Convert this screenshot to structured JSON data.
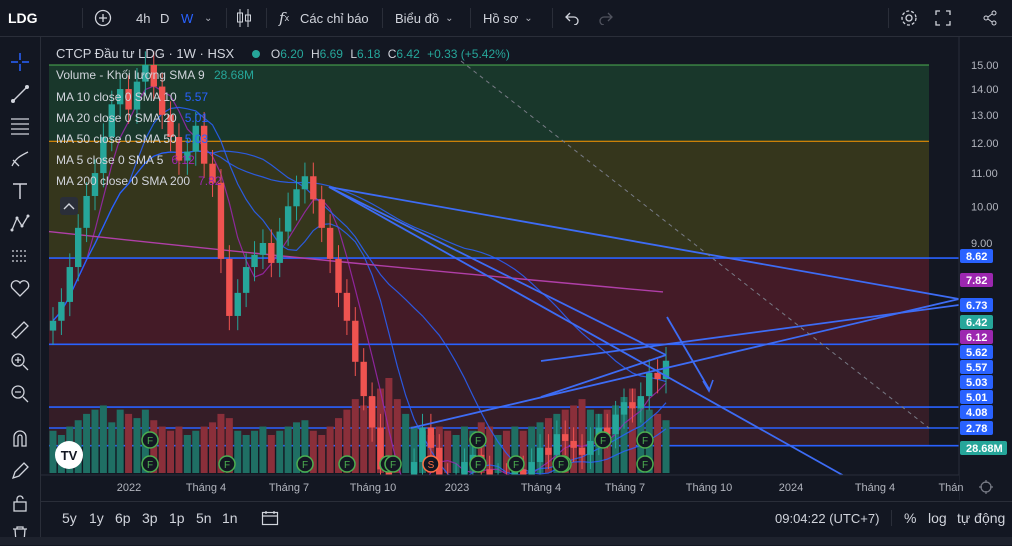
{
  "toolbar": {
    "symbol": "LDG",
    "interval_4h": "4h",
    "interval_d": "D",
    "interval_w": "W",
    "indicators_label": "Các chỉ báo",
    "chart_menu_label": "Biểu đồ",
    "profile_label": "Hồ sơ"
  },
  "legend": {
    "title": "CTCP Đầu tư LDG · 1W · HSX",
    "o_label": "O",
    "o_value": "6.20",
    "h_label": "H",
    "h_value": "6.69",
    "l_label": "L",
    "l_value": "6.18",
    "c_label": "C",
    "c_value": "6.42",
    "change": "+0.33 (+5.42%)",
    "volume_label": "Volume - Khối lượng SMA 9",
    "volume_value": "28.68M",
    "ma_rows": [
      {
        "label": "MA 10 close 0 SMA 10",
        "value": "5.57",
        "color": "#2962ff"
      },
      {
        "label": "MA 20 close 0 SMA 20",
        "value": "5.01",
        "color": "#2962ff"
      },
      {
        "label": "MA 50 close 0 SMA 50",
        "value": "5.03",
        "color": "#2962ff"
      },
      {
        "label": "MA 5 close 0 SMA 5",
        "value": "6.12",
        "color": "#9c27b0"
      },
      {
        "label": "MA 200 close 0 SMA 200",
        "value": "7.82",
        "color": "#9c27b0"
      }
    ]
  },
  "chart_data": {
    "type": "candlestick",
    "title": "CTCP Đầu tư LDG · 1W · HSX",
    "y_ticks": [
      "15.00",
      "14.00",
      "13.00",
      "12.00",
      "11.00",
      "10.00",
      "9.00"
    ],
    "x_ticks": [
      "2022",
      "Tháng 4",
      "Tháng 7",
      "Tháng 10",
      "2023",
      "Tháng 4",
      "Tháng 7",
      "Tháng 10",
      "2024",
      "Tháng 4",
      "Thán"
    ],
    "price_labels": [
      {
        "value": "8.62",
        "color": "#2962ff"
      },
      {
        "value": "7.82",
        "color": "#9c27b0"
      },
      {
        "value": "6.73",
        "color": "#2962ff"
      },
      {
        "value": "6.42",
        "color": "#26a69a"
      },
      {
        "value": "6.12",
        "color": "#9c27b0"
      },
      {
        "value": "5.62",
        "color": "#2962ff"
      },
      {
        "value": "5.57",
        "color": "#2962ff"
      },
      {
        "value": "5.03",
        "color": "#2962ff"
      },
      {
        "value": "5.01",
        "color": "#2962ff"
      },
      {
        "value": "4.08",
        "color": "#2962ff"
      },
      {
        "value": "2.78",
        "color": "#2962ff"
      },
      {
        "value": "28.68M",
        "color": "#26a69a"
      }
    ],
    "horizontal_levels": [
      15.0,
      12.05,
      8.62,
      6.73,
      5.62,
      5.03,
      2.78
    ],
    "series": {
      "close": [
        7.2,
        7.6,
        8.4,
        9.4,
        10.3,
        11.0,
        12.2,
        13.4,
        14.0,
        13.2,
        14.3,
        15.0,
        14.1,
        13.0,
        12.2,
        11.4,
        11.7,
        12.6,
        11.3,
        10.7,
        8.6,
        7.3,
        7.8,
        8.4,
        8.7,
        9.0,
        8.5,
        9.3,
        10.0,
        10.5,
        10.9,
        10.2,
        9.4,
        8.6,
        7.8,
        7.2,
        6.4,
        5.8,
        5.3,
        4.7,
        4.1,
        3.9,
        4.3,
        4.8,
        5.3,
        5.0,
        4.6,
        4.4,
        4.6,
        4.8,
        4.9,
        4.7,
        4.5,
        4.6,
        4.5,
        4.7,
        4.6,
        4.8,
        5.0,
        4.9,
        5.2,
        5.1,
        5.0,
        4.9,
        5.1,
        5.3,
        5.2,
        5.5,
        5.7,
        5.6,
        5.8,
        6.2,
        6.09,
        6.42
      ],
      "volume_m": [
        20,
        18,
        22,
        25,
        28,
        30,
        32,
        24,
        30,
        28,
        26,
        30,
        25,
        22,
        20,
        22,
        18,
        20,
        22,
        24,
        28,
        26,
        20,
        18,
        20,
        22,
        18,
        20,
        22,
        24,
        25,
        20,
        18,
        22,
        26,
        30,
        35,
        32,
        36,
        40,
        45,
        35,
        28,
        22,
        20,
        18,
        22,
        20,
        18,
        22,
        20,
        24,
        22,
        18,
        20,
        22,
        20,
        22,
        24,
        26,
        28,
        30,
        32,
        35,
        30,
        28,
        30,
        32,
        36,
        40,
        35,
        30,
        28,
        25
      ]
    },
    "moving_averages": [
      {
        "name": "MA 10",
        "value": 5.57
      },
      {
        "name": "MA 20",
        "value": 5.01
      },
      {
        "name": "MA 50",
        "value": 5.03
      },
      {
        "name": "MA 5",
        "value": 6.12
      },
      {
        "name": "MA 200",
        "value": 7.82
      }
    ],
    "event_markers": [
      "F",
      "F",
      "F",
      "F",
      "F",
      "F",
      "F",
      "F",
      "S",
      "F",
      "F",
      "F",
      "F",
      "F",
      "F",
      "F"
    ]
  },
  "bottombar": {
    "ranges": [
      "5y",
      "1y",
      "6p",
      "3p",
      "1p",
      "5n",
      "1n"
    ],
    "clock": "09:04:22 (UTC+7)",
    "percent": "%",
    "log": "log",
    "auto": "tự động"
  }
}
